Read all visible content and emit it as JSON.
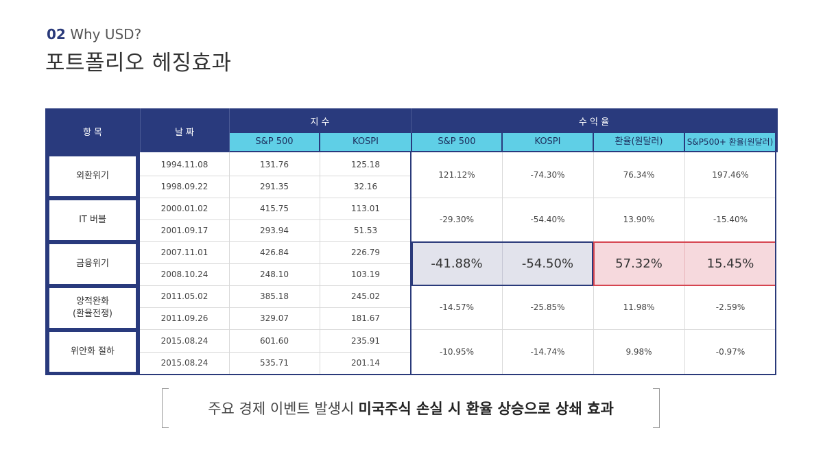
{
  "header": {
    "section_number": "02",
    "section_title": "Why USD?",
    "title": "포트폴리오 헤징효과"
  },
  "table": {
    "col_category": "항 목",
    "col_date": "날 짜",
    "group_index": "지 수",
    "group_return": "수 익 율",
    "sub_headers": [
      "S&P 500",
      "KOSPI",
      "S&P 500",
      "KOSPI",
      "환율(원달러)",
      "S&P500+ 환율(원달러)"
    ],
    "rows": [
      {
        "category": "외환위기",
        "dates": [
          "1994.11.08",
          "1998.09.22"
        ],
        "sp500": [
          "131.76",
          "291.35"
        ],
        "kospi": [
          "125.18",
          "32.16"
        ],
        "returns": [
          "121.12%",
          "-74.30%",
          "76.34%",
          "197.46%"
        ]
      },
      {
        "category": "IT 버블",
        "dates": [
          "2000.01.02",
          "2001.09.17"
        ],
        "sp500": [
          "415.75",
          "293.94"
        ],
        "kospi": [
          "113.01",
          "51.53"
        ],
        "returns": [
          "-29.30%",
          "-54.40%",
          "13.90%",
          "-15.40%"
        ]
      },
      {
        "category": "금융위기",
        "dates": [
          "2007.11.01",
          "2008.10.24"
        ],
        "sp500": [
          "426.84",
          "248.10"
        ],
        "kospi": [
          "226.79",
          "103.19"
        ],
        "returns": [
          "-41.88%",
          "-54.50%",
          "57.32%",
          "15.45%"
        ]
      },
      {
        "category_line1": "양적완화",
        "category_line2": "(환율전쟁)",
        "dates": [
          "2011.05.02",
          "2011.09.26"
        ],
        "sp500": [
          "385.18",
          "329.07"
        ],
        "kospi": [
          "245.02",
          "181.67"
        ],
        "returns": [
          "-14.57%",
          "-25.85%",
          "11.98%",
          "-2.59%"
        ]
      },
      {
        "category": "위안화 절하",
        "dates": [
          "2015.08.24",
          "2015.08.24"
        ],
        "sp500": [
          "601.60",
          "535.71"
        ],
        "kospi": [
          "235.91",
          "201.14"
        ],
        "returns": [
          "-10.95%",
          "-14.74%",
          "9.98%",
          "-0.97%"
        ]
      }
    ]
  },
  "caption": {
    "normal": "주요 경제 이벤트 발생시",
    "bold": "미국주식 손실 시 환율 상승으로 상쇄 효과"
  },
  "colors": {
    "navy": "#293a7d",
    "cyan": "#5fcfe6",
    "highlight_blue": "#e2e3ec",
    "highlight_red": "#f6d9dd",
    "red_border": "#d64550"
  }
}
